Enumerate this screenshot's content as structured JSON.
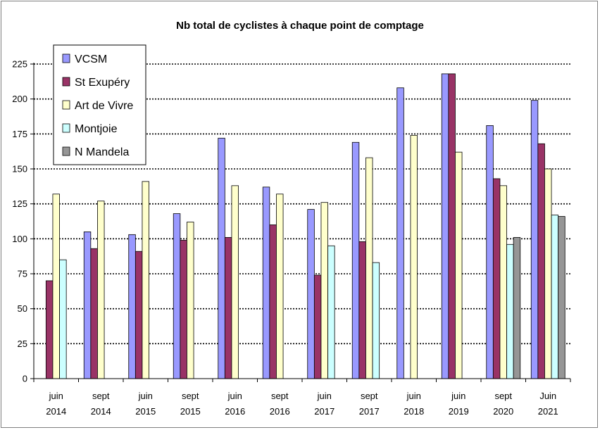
{
  "chart_data": {
    "type": "bar",
    "title": "Nb total de cyclistes à chaque point de comptage",
    "xlabel": "",
    "ylabel": "",
    "ylim": [
      0,
      225
    ],
    "yticks": [
      0,
      25,
      50,
      75,
      100,
      125,
      150,
      175,
      200,
      225
    ],
    "grid": "horizontal dotted",
    "legend_position": "top-left",
    "categories": [
      [
        "juin",
        "2014"
      ],
      [
        "sept",
        "2014"
      ],
      [
        "juin",
        "2015"
      ],
      [
        "sept",
        "2015"
      ],
      [
        "juin",
        "2016"
      ],
      [
        "sept",
        "2016"
      ],
      [
        "juin",
        "2017"
      ],
      [
        "sept",
        "2017"
      ],
      [
        "juin",
        "2018"
      ],
      [
        "juin",
        "2019"
      ],
      [
        "sept",
        "2020"
      ],
      [
        "Juin",
        "2021"
      ]
    ],
    "series": [
      {
        "name": "VCSM",
        "color": "#9999ff",
        "values": [
          null,
          105,
          103,
          118,
          172,
          137,
          121,
          169,
          208,
          218,
          181,
          199
        ]
      },
      {
        "name": "St Exupéry",
        "color": "#993366",
        "values": [
          70,
          93,
          91,
          99,
          101,
          110,
          74,
          98,
          null,
          218,
          143,
          168
        ]
      },
      {
        "name": "Art de Vivre",
        "color": "#ffffcc",
        "values": [
          132,
          127,
          141,
          112,
          138,
          132,
          126,
          158,
          174,
          162,
          138,
          150
        ]
      },
      {
        "name": "Montjoie",
        "color": "#ccffff",
        "values": [
          85,
          null,
          null,
          null,
          null,
          null,
          95,
          83,
          null,
          null,
          96,
          117
        ]
      },
      {
        "name": "N Mandela",
        "color": "#969696",
        "values": [
          null,
          null,
          null,
          null,
          null,
          null,
          null,
          null,
          null,
          null,
          101,
          116
        ]
      }
    ]
  }
}
